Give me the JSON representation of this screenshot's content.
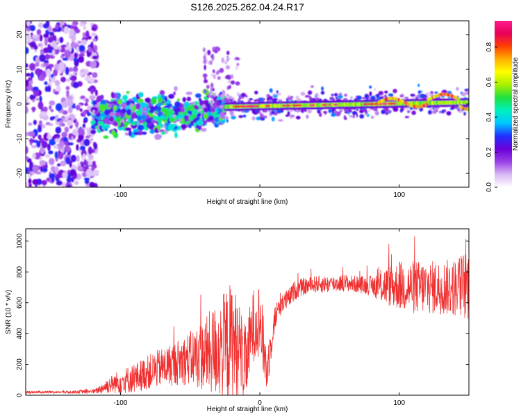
{
  "figure_title": "S126.2025.262.04.24.R17",
  "chart_data": [
    {
      "type": "heatmap",
      "title": "S126.2025.262.04.24.R17",
      "xlabel": "Height of straight line (km)",
      "ylabel": "Frequency (Hz)",
      "xlim": [
        -168,
        150
      ],
      "ylim": [
        -24,
        24
      ],
      "xticks": [
        -100,
        0,
        100
      ],
      "yticks": [
        -20,
        -10,
        0,
        10,
        20
      ],
      "colorbar": {
        "label": "Normalized spectral amplitude",
        "range": [
          0.0,
          0.95
        ],
        "ticks": [
          0.0,
          0.2,
          0.4,
          0.6,
          0.8
        ],
        "tick_labels": [
          "0.0",
          "0.2",
          "0.4",
          "0.6",
          "0.8"
        ],
        "colors": [
          "#ffffff",
          "#d9b8f5",
          "#9a3fe8",
          "#6a00d8",
          "#2030ff",
          "#00c8ff",
          "#00f0c0",
          "#20e040",
          "#a8f000",
          "#ffff00",
          "#ffb000",
          "#ff4000",
          "#e8005a",
          "#ff1a8c"
        ]
      },
      "features": [
        {
          "name": "noise-region",
          "x_range": [
            -168,
            -117
          ],
          "freq_range": [
            -24,
            24
          ],
          "amplitude": [
            0.05,
            0.3
          ]
        },
        {
          "name": "scattered-signal",
          "x_range": [
            -120,
            -25
          ],
          "center_freq": -3,
          "spread": 5,
          "amplitude": [
            0.2,
            0.55
          ]
        },
        {
          "name": "narrow-carrier",
          "x_range": [
            -25,
            150
          ],
          "freq_start": -0.8,
          "freq_end": 0.5,
          "amplitude": [
            0.5,
            0.95
          ]
        },
        {
          "name": "carrier-wiggle",
          "x_range": [
            85,
            150
          ],
          "freq_range": [
            -2,
            2.8
          ],
          "amplitude": [
            0.6,
            0.95
          ]
        }
      ]
    },
    {
      "type": "line",
      "xlabel": "Height of straight line (km)",
      "ylabel": "SNR (10 * v/v)",
      "xlim": [
        -168,
        150
      ],
      "ylim": [
        0,
        1080
      ],
      "xticks": [
        -100,
        0,
        100
      ],
      "yticks": [
        0,
        200,
        400,
        600,
        800,
        1000
      ],
      "series": [
        {
          "name": "SNR",
          "color": "#f03030",
          "x": [
            -168,
            -140,
            -118,
            -110,
            -100,
            -90,
            -80,
            -70,
            -60,
            -50,
            -40,
            -30,
            -20,
            -15,
            -10,
            -5,
            0,
            5,
            10,
            15,
            20,
            25,
            30,
            40,
            50,
            60,
            70,
            80,
            90,
            100,
            110,
            120,
            130,
            140,
            150
          ],
          "y": [
            20,
            20,
            25,
            60,
            90,
            110,
            150,
            180,
            210,
            240,
            260,
            300,
            350,
            300,
            200,
            450,
            500,
            150,
            470,
            600,
            620,
            680,
            700,
            720,
            720,
            730,
            720,
            710,
            710,
            710,
            700,
            700,
            700,
            700,
            720
          ],
          "noise_amplitude": [
            5,
            5,
            10,
            30,
            50,
            60,
            70,
            80,
            90,
            110,
            150,
            200,
            250,
            200,
            150,
            150,
            150,
            100,
            60,
            50,
            40,
            40,
            35,
            35,
            35,
            35,
            35,
            40,
            80,
            100,
            110,
            110,
            110,
            120,
            150
          ]
        }
      ]
    }
  ]
}
